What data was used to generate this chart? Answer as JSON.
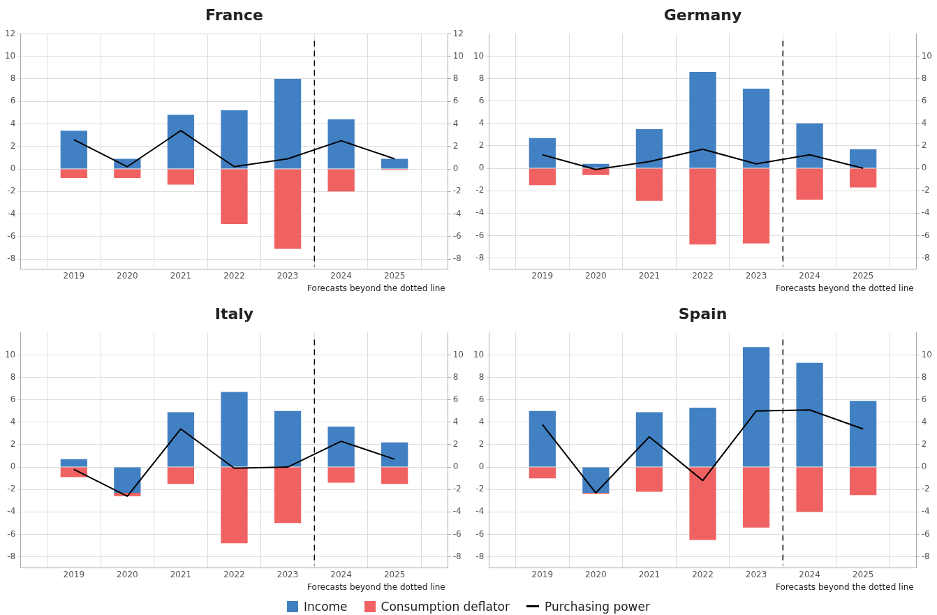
{
  "chart_data": [
    {
      "type": "bar",
      "title": "France",
      "stacked": true,
      "grid": true,
      "legend": "bottom",
      "x": [
        2019,
        2020,
        2021,
        2022,
        2023,
        2024,
        2025
      ],
      "xlim": [
        2018,
        2026
      ],
      "xticks": [
        2019,
        2020,
        2021,
        2022,
        2023,
        2024,
        2025
      ],
      "ylim": [
        -8.9,
        12
      ],
      "yticks": [
        -8,
        -6,
        -4,
        -2,
        0,
        2,
        4,
        6,
        8,
        10,
        12
      ],
      "y2lim": [
        -8.9,
        12
      ],
      "y2ticks": [
        -8,
        -6,
        -4,
        -2,
        0,
        2,
        4,
        6,
        8,
        10,
        12
      ],
      "series": [
        {
          "name": "Income",
          "color": "#4180c2",
          "values": [
            3.4,
            0.9,
            4.8,
            5.2,
            8.0,
            4.4,
            0.9
          ]
        },
        {
          "name": "Consumption deflator",
          "color": "#f06262",
          "values": [
            -0.8,
            -0.8,
            -1.4,
            -4.9,
            -7.1,
            -2.0,
            -0.1
          ]
        },
        {
          "name": "Purchasing power",
          "type": "line",
          "color": "#000000",
          "values": [
            2.6,
            0.2,
            3.4,
            0.2,
            0.9,
            2.5,
            0.9
          ]
        }
      ],
      "ref_lines": [
        {
          "axis": "x",
          "value": 2023.5,
          "line_style": "dashed",
          "color": "#000000"
        }
      ],
      "annotations": [
        "Forecasts beyond the dotted line"
      ]
    },
    {
      "type": "bar",
      "title": "Germany",
      "stacked": true,
      "grid": true,
      "x": [
        2019,
        2020,
        2021,
        2022,
        2023,
        2024,
        2025
      ],
      "xlim": [
        2018,
        2026
      ],
      "xticks": [
        2019,
        2020,
        2021,
        2022,
        2023,
        2024,
        2025
      ],
      "ylim": [
        -9,
        12
      ],
      "yticks": [
        -8,
        -6,
        -4,
        -2,
        0,
        2,
        4,
        6,
        8,
        10
      ],
      "y2lim": [
        -9,
        12
      ],
      "y2ticks": [
        -8,
        -6,
        -4,
        -2,
        0,
        2,
        4,
        6,
        8,
        10
      ],
      "series": [
        {
          "color": "#4180c2",
          "values": [
            2.7,
            0.4,
            3.5,
            8.6,
            7.1,
            4.0,
            1.7
          ]
        },
        {
          "color": "#f06262",
          "values": [
            -1.5,
            -0.6,
            -2.9,
            -6.8,
            -6.7,
            -2.8,
            -1.7
          ]
        },
        {
          "type": "line",
          "color": "#000000",
          "values": [
            1.2,
            -0.1,
            0.6,
            1.7,
            0.4,
            1.2,
            0.0
          ]
        }
      ],
      "ref_lines": [
        {
          "axis": "x",
          "value": 2023.5,
          "line_style": "dashed",
          "color": "#000000"
        }
      ],
      "annotations": [
        "Forecasts beyond the dotted line"
      ]
    },
    {
      "type": "bar",
      "title": "Italy",
      "stacked": true,
      "grid": true,
      "x": [
        2019,
        2020,
        2021,
        2022,
        2023,
        2024,
        2025
      ],
      "xlim": [
        2018,
        2026
      ],
      "xticks": [
        2019,
        2020,
        2021,
        2022,
        2023,
        2024,
        2025
      ],
      "ylim": [
        -9,
        12
      ],
      "yticks": [
        -8,
        -6,
        -4,
        -2,
        0,
        2,
        4,
        6,
        8,
        10
      ],
      "y2lim": [
        -9,
        12
      ],
      "y2ticks": [
        -8,
        -6,
        -4,
        -2,
        0,
        2,
        4,
        6,
        8,
        10
      ],
      "series": [
        {
          "color": "#4180c2",
          "values": [
            0.7,
            -2.3,
            4.9,
            6.7,
            5.0,
            3.6,
            2.2
          ]
        },
        {
          "color": "#f06262",
          "values": [
            -0.9,
            -0.3,
            -1.5,
            -6.8,
            -5.0,
            -1.4,
            -1.5
          ]
        },
        {
          "type": "line",
          "color": "#000000",
          "values": [
            -0.2,
            -2.6,
            3.4,
            -0.1,
            0.0,
            2.3,
            0.7
          ]
        }
      ],
      "ref_lines": [
        {
          "axis": "x",
          "value": 2023.5,
          "line_style": "dashed",
          "color": "#000000"
        }
      ],
      "annotations": [
        "Forecasts beyond the dotted line"
      ]
    },
    {
      "type": "bar",
      "title": "Spain",
      "stacked": true,
      "grid": true,
      "x": [
        2019,
        2020,
        2021,
        2022,
        2023,
        2024,
        2025
      ],
      "xlim": [
        2018,
        2026
      ],
      "xticks": [
        2019,
        2020,
        2021,
        2022,
        2023,
        2024,
        2025
      ],
      "ylim": [
        -9,
        12
      ],
      "yticks": [
        -8,
        -6,
        -4,
        -2,
        0,
        2,
        4,
        6,
        8,
        10
      ],
      "y2lim": [
        -9,
        12
      ],
      "y2ticks": [
        -8,
        -6,
        -4,
        -2,
        0,
        2,
        4,
        6,
        8,
        10
      ],
      "series": [
        {
          "color": "#4180c2",
          "values": [
            5.0,
            -2.3,
            4.9,
            5.3,
            10.7,
            9.3,
            5.9
          ]
        },
        {
          "color": "#f06262",
          "values": [
            -1.0,
            -0.1,
            -2.2,
            -6.5,
            -5.4,
            -4.0,
            -2.5
          ]
        },
        {
          "type": "line",
          "color": "#000000",
          "values": [
            3.8,
            -2.3,
            2.7,
            -1.2,
            5.0,
            5.1,
            3.4
          ]
        }
      ],
      "ref_lines": [
        {
          "axis": "x",
          "value": 2023.5,
          "line_style": "dashed",
          "color": "#000000"
        }
      ],
      "annotations": [
        "Forecasts beyond the dotted line"
      ]
    }
  ]
}
